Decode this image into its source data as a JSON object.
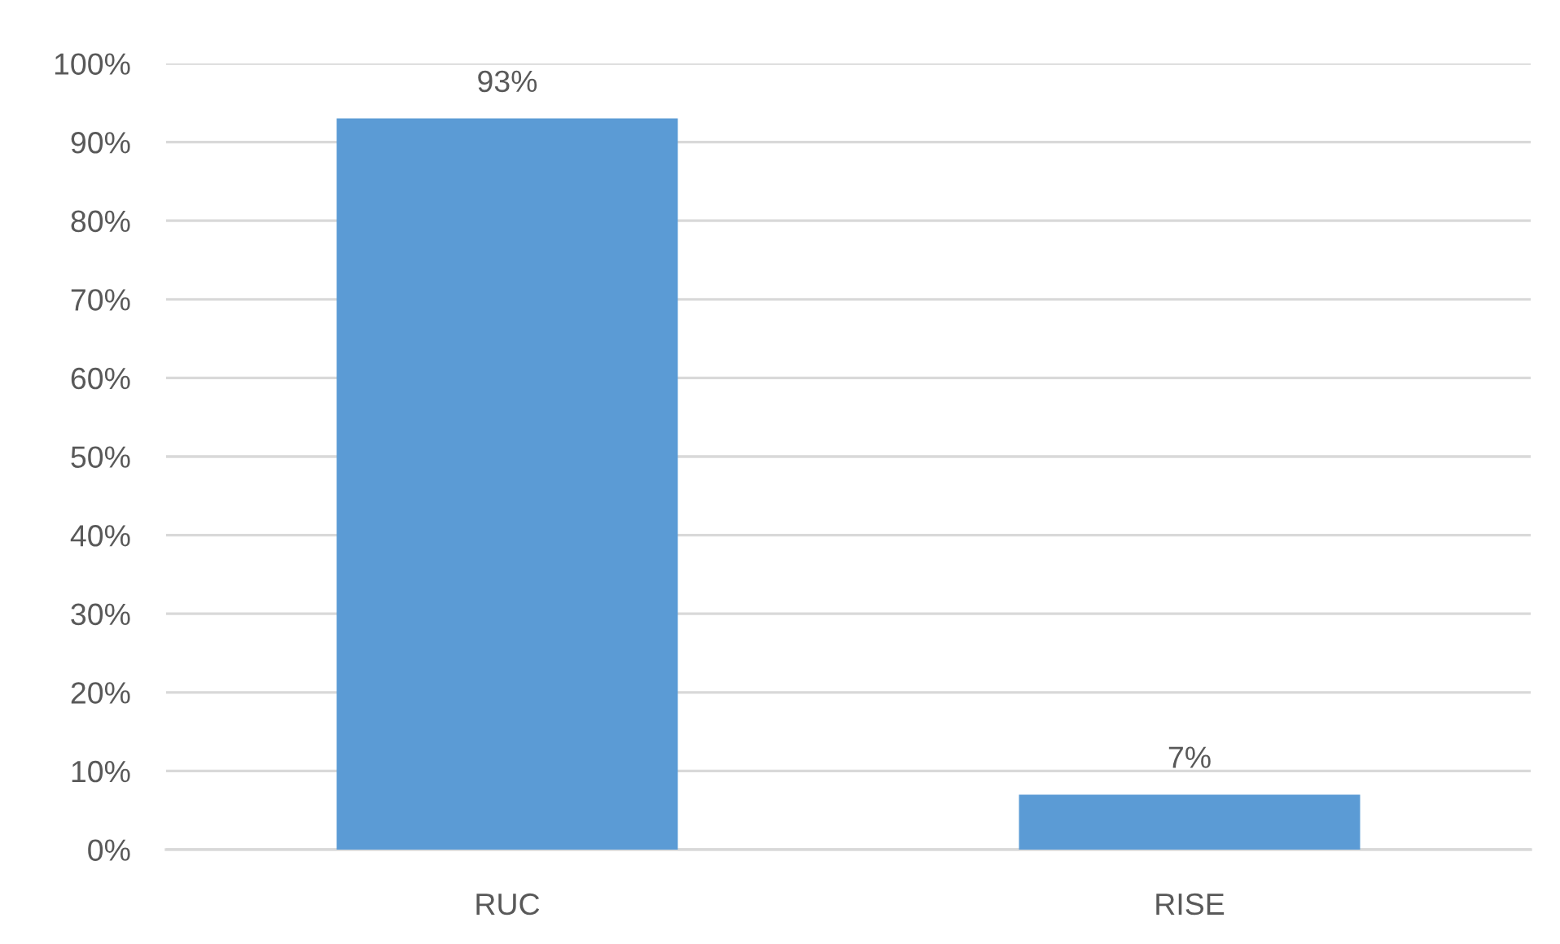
{
  "chart_data": {
    "type": "bar",
    "categories": [
      "RUC",
      "RISE"
    ],
    "values": [
      93,
      7
    ],
    "color": "#5b9bd5",
    "value_labels": [
      "93%",
      "7%"
    ],
    "ylim": [
      0,
      100
    ],
    "yticks": [
      {
        "value": 0,
        "label": "0%"
      },
      {
        "value": 10,
        "label": "10%"
      },
      {
        "value": 20,
        "label": "20%"
      },
      {
        "value": 30,
        "label": "30%"
      },
      {
        "value": 40,
        "label": "40%"
      },
      {
        "value": 50,
        "label": "50%"
      },
      {
        "value": 60,
        "label": "60%"
      },
      {
        "value": 70,
        "label": "70%"
      },
      {
        "value": 80,
        "label": "80%"
      },
      {
        "value": 90,
        "label": "90%"
      },
      {
        "value": 100,
        "label": "100%"
      }
    ],
    "grid": "y"
  }
}
